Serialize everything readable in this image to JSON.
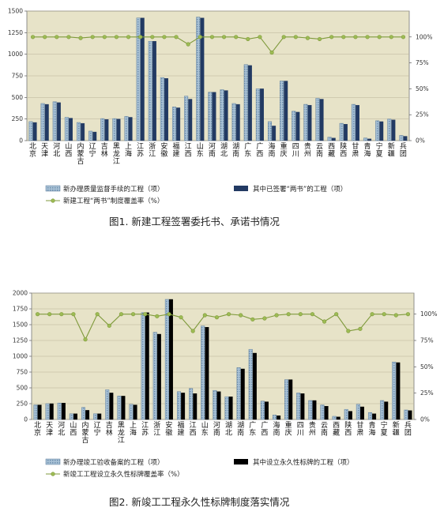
{
  "colors": {
    "plot_bg": "#e7e3c8",
    "bar_hatch_light": "#9bb9cf",
    "bar_dark_1": "#223a63",
    "bar_dark_2": "#000000",
    "line": "#7f9a3c",
    "marker": "#9dbb54"
  },
  "chart_data": [
    {
      "type": "bar",
      "title": "图1. 新建工程签署委托书、承诺书情况",
      "categories": [
        "北京",
        "天津",
        "河北",
        "山西",
        "内蒙古",
        "辽宁",
        "吉林",
        "黑龙江",
        "上海",
        "江苏",
        "浙江",
        "安徽",
        "福建",
        "江西",
        "山东",
        "河南",
        "湖北",
        "湖南",
        "广东",
        "广西",
        "海南",
        "重庆",
        "四川",
        "贵州",
        "云南",
        "西藏",
        "陕西",
        "甘肃",
        "青海",
        "宁夏",
        "新疆",
        "兵团"
      ],
      "ylim": [
        0,
        1500
      ],
      "yticks": [
        0,
        250,
        500,
        750,
        1000,
        1250,
        1500
      ],
      "y2lim": [
        0,
        125
      ],
      "y2ticks": [
        "0%",
        "25%",
        "50%",
        "75%",
        "100%"
      ],
      "series": [
        {
          "name": "新办理质量监督手续的工程（项）",
          "values": [
            220,
            430,
            450,
            270,
            210,
            110,
            255,
            255,
            280,
            1420,
            1150,
            730,
            390,
            515,
            1430,
            560,
            590,
            430,
            880,
            600,
            220,
            690,
            340,
            420,
            490,
            40,
            200,
            420,
            30,
            230,
            250,
            60
          ]
        },
        {
          "name": "其中已签署“两书”的工程（项）",
          "values": [
            210,
            420,
            440,
            260,
            200,
            100,
            245,
            250,
            270,
            1420,
            1150,
            720,
            380,
            480,
            1420,
            560,
            580,
            420,
            870,
            600,
            170,
            690,
            330,
            410,
            480,
            30,
            190,
            410,
            20,
            220,
            240,
            50
          ]
        },
        {
          "name": "新建工程“两书”制度覆盖率（%）",
          "values": [
            100,
            100,
            100,
            100,
            99,
            100,
            100,
            100,
            100,
            100,
            100,
            100,
            100,
            93,
            100,
            100,
            100,
            100,
            98,
            100,
            85,
            100,
            100,
            99,
            98,
            100,
            100,
            100,
            100,
            100,
            100,
            100
          ]
        }
      ]
    },
    {
      "type": "bar",
      "title": "图2. 新竣工工程永久性标牌制度落实情况",
      "categories": [
        "北京",
        "天津",
        "河北",
        "山西",
        "内蒙古",
        "辽宁",
        "吉林",
        "黑龙江",
        "上海",
        "江苏",
        "浙江",
        "安徽",
        "福建",
        "江西",
        "山东",
        "河南",
        "湖北",
        "湖南",
        "广东",
        "广西",
        "海南",
        "重庆",
        "四川",
        "贵州",
        "云南",
        "西藏",
        "陕西",
        "甘肃",
        "青海",
        "宁夏",
        "新疆",
        "兵团"
      ],
      "ylim": [
        0,
        2000
      ],
      "yticks": [
        0,
        250,
        500,
        750,
        1000,
        1250,
        1500,
        1750,
        2000
      ],
      "y2lim": [
        0,
        120
      ],
      "y2ticks": [
        "0%",
        "25%",
        "50%",
        "75%",
        "100%"
      ],
      "series": [
        {
          "name": "新办理竣工验收备案的工程（项）",
          "values": [
            230,
            250,
            260,
            90,
            190,
            90,
            470,
            370,
            240,
            1690,
            1380,
            1900,
            440,
            490,
            1480,
            460,
            360,
            820,
            1110,
            290,
            70,
            630,
            420,
            300,
            230,
            50,
            160,
            240,
            110,
            300,
            910,
            150
          ]
        },
        {
          "name": "其中设立永久性标牌的工程（项）",
          "values": [
            230,
            250,
            260,
            90,
            145,
            90,
            420,
            370,
            230,
            1690,
            1350,
            1900,
            420,
            410,
            1460,
            440,
            360,
            800,
            1050,
            280,
            60,
            630,
            410,
            300,
            210,
            40,
            130,
            200,
            90,
            280,
            900,
            140
          ]
        },
        {
          "name": "新竣工工程设立永久性标牌覆盖率（%）",
          "values": [
            100,
            100,
            100,
            100,
            76,
            100,
            89,
            100,
            100,
            100,
            98,
            100,
            97,
            84,
            99,
            97,
            100,
            99,
            95,
            96,
            99,
            100,
            100,
            100,
            93,
            100,
            84,
            86,
            100,
            100,
            99,
            100
          ]
        }
      ]
    }
  ]
}
